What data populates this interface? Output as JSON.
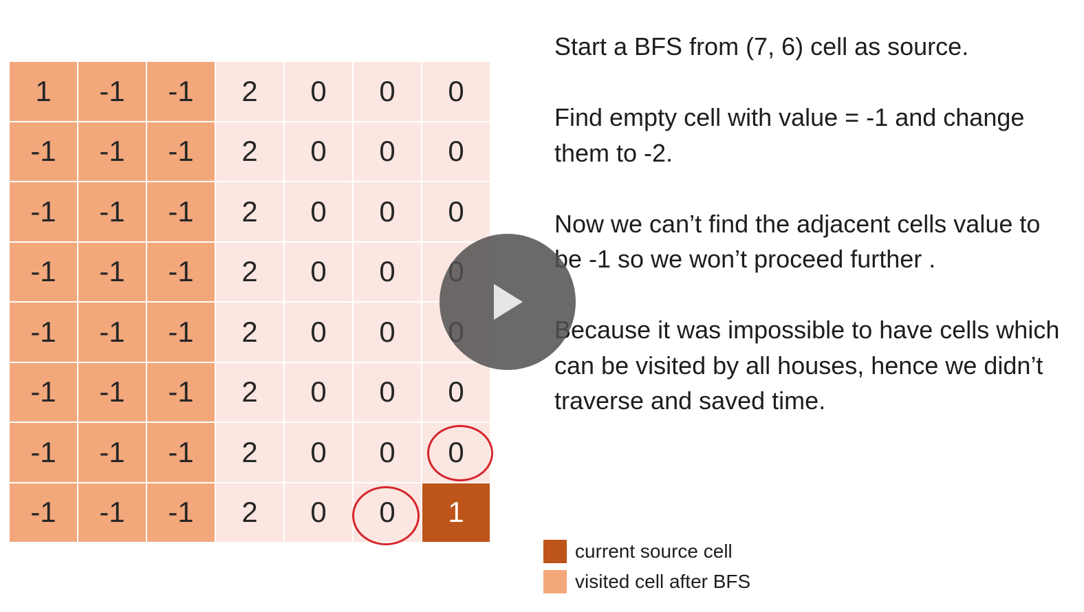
{
  "grid": {
    "rows": [
      [
        {
          "value": "1",
          "state": "visited"
        },
        {
          "value": "-1",
          "state": "visited"
        },
        {
          "value": "-1",
          "state": "visited"
        },
        {
          "value": "2",
          "state": "light"
        },
        {
          "value": "0",
          "state": "light"
        },
        {
          "value": "0",
          "state": "light"
        },
        {
          "value": "0",
          "state": "light"
        }
      ],
      [
        {
          "value": "-1",
          "state": "visited"
        },
        {
          "value": "-1",
          "state": "visited"
        },
        {
          "value": "-1",
          "state": "visited"
        },
        {
          "value": "2",
          "state": "light"
        },
        {
          "value": "0",
          "state": "light"
        },
        {
          "value": "0",
          "state": "light"
        },
        {
          "value": "0",
          "state": "light"
        }
      ],
      [
        {
          "value": "-1",
          "state": "visited"
        },
        {
          "value": "-1",
          "state": "visited"
        },
        {
          "value": "-1",
          "state": "visited"
        },
        {
          "value": "2",
          "state": "light"
        },
        {
          "value": "0",
          "state": "light"
        },
        {
          "value": "0",
          "state": "light"
        },
        {
          "value": "0",
          "state": "light"
        }
      ],
      [
        {
          "value": "-1",
          "state": "visited"
        },
        {
          "value": "-1",
          "state": "visited"
        },
        {
          "value": "-1",
          "state": "visited"
        },
        {
          "value": "2",
          "state": "light"
        },
        {
          "value": "0",
          "state": "light"
        },
        {
          "value": "0",
          "state": "light"
        },
        {
          "value": "0",
          "state": "light"
        }
      ],
      [
        {
          "value": "-1",
          "state": "visited"
        },
        {
          "value": "-1",
          "state": "visited"
        },
        {
          "value": "-1",
          "state": "visited"
        },
        {
          "value": "2",
          "state": "light"
        },
        {
          "value": "0",
          "state": "light"
        },
        {
          "value": "0",
          "state": "light"
        },
        {
          "value": "0",
          "state": "light"
        }
      ],
      [
        {
          "value": "-1",
          "state": "visited"
        },
        {
          "value": "-1",
          "state": "visited"
        },
        {
          "value": "-1",
          "state": "visited"
        },
        {
          "value": "2",
          "state": "light"
        },
        {
          "value": "0",
          "state": "light"
        },
        {
          "value": "0",
          "state": "light"
        },
        {
          "value": "0",
          "state": "light"
        }
      ],
      [
        {
          "value": "-1",
          "state": "visited"
        },
        {
          "value": "-1",
          "state": "visited"
        },
        {
          "value": "-1",
          "state": "visited"
        },
        {
          "value": "2",
          "state": "light"
        },
        {
          "value": "0",
          "state": "light"
        },
        {
          "value": "0",
          "state": "light"
        },
        {
          "value": "0",
          "state": "light"
        }
      ],
      [
        {
          "value": "-1",
          "state": "visited"
        },
        {
          "value": "-1",
          "state": "visited"
        },
        {
          "value": "-1",
          "state": "visited"
        },
        {
          "value": "2",
          "state": "light"
        },
        {
          "value": "0",
          "state": "light"
        },
        {
          "value": "0",
          "state": "light"
        },
        {
          "value": "1",
          "state": "source"
        }
      ]
    ],
    "circled_cells": [
      {
        "row": 6,
        "col": 6
      },
      {
        "row": 7,
        "col": 5
      }
    ]
  },
  "colors": {
    "source": "#bd5419",
    "visited": "#f3a87c",
    "unvisited": "#fbe6e1",
    "circle": "#d6252a"
  },
  "explanation": [
    "Start a BFS from (7, 6) cell as source.",
    "Find empty cell with value = -1 and change them to -2.",
    "Now we can’t find the adjacent cells value to be -1 so we won’t proceed further .",
    "Because it was impossible to have cells which can be visited by all houses, hence we didn’t traverse and saved time."
  ],
  "legend": [
    {
      "label": "current source cell",
      "color": "#bd5419"
    },
    {
      "label": "visited cell after BFS",
      "color": "#f3a87c"
    }
  ],
  "player": {
    "icon": "play-icon"
  }
}
